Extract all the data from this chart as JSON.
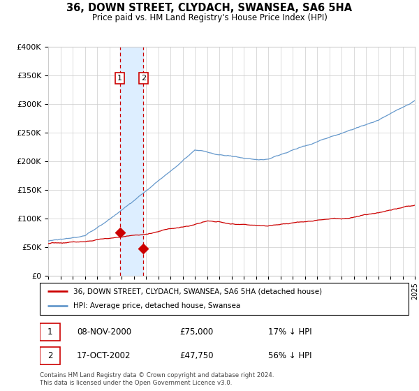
{
  "title": "36, DOWN STREET, CLYDACH, SWANSEA, SA6 5HA",
  "subtitle": "Price paid vs. HM Land Registry's House Price Index (HPI)",
  "sale1_date": 2000.86,
  "sale1_price": 75000,
  "sale2_date": 2002.79,
  "sale2_price": 47750,
  "legend_label_red": "36, DOWN STREET, CLYDACH, SWANSEA, SA6 5HA (detached house)",
  "legend_label_blue": "HPI: Average price, detached house, Swansea",
  "table_rows": [
    [
      "1",
      "08-NOV-2000",
      "£75,000",
      "17% ↓ HPI"
    ],
    [
      "2",
      "17-OCT-2002",
      "£47,750",
      "56% ↓ HPI"
    ]
  ],
  "footer": "Contains HM Land Registry data © Crown copyright and database right 2024.\nThis data is licensed under the Open Government Licence v3.0.",
  "ylim": [
    0,
    400000
  ],
  "xlim": [
    1995,
    2025
  ],
  "yticks": [
    0,
    50000,
    100000,
    150000,
    200000,
    250000,
    300000,
    350000,
    400000
  ],
  "ytick_labels": [
    "£0",
    "£50K",
    "£100K",
    "£150K",
    "£200K",
    "£250K",
    "£300K",
    "£350K",
    "£400K"
  ],
  "red_color": "#cc0000",
  "blue_color": "#6699cc",
  "background_color": "#ffffff",
  "grid_color": "#cccccc",
  "shade_color": "#ddeeff"
}
